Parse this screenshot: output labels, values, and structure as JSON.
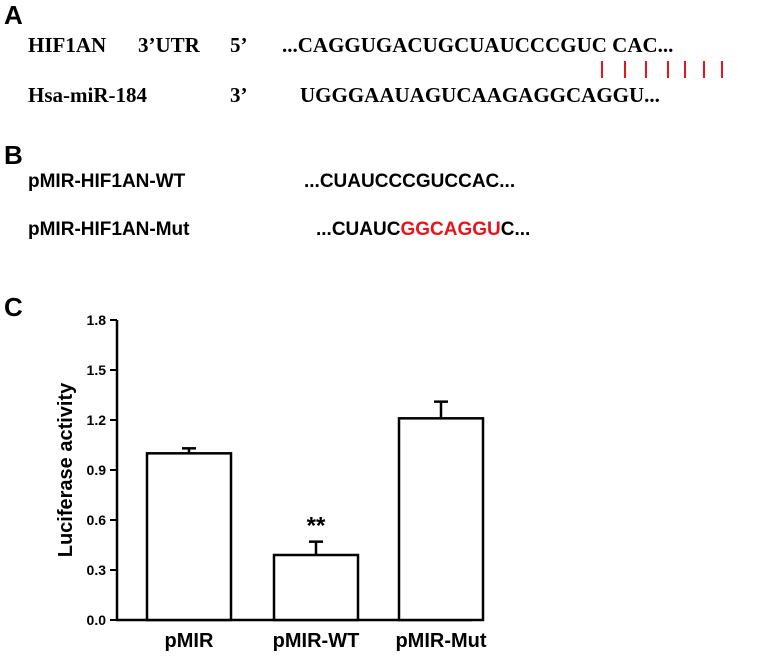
{
  "panel_a": {
    "label": "A",
    "row1": {
      "name": "HIF1AN",
      "region": "3’UTR",
      "end": "5’",
      "sequence": "...CAGGUGACUGCUAUCCCGUC CAC..."
    },
    "row2": {
      "name": "Hsa-miR-184",
      "end": "3’",
      "sequence": "UGGGAAUAGUCAAGAGGCAGGU..."
    },
    "pairing_count": 7,
    "pairing_color": "#e8141b"
  },
  "panel_b": {
    "label": "B",
    "wt": {
      "name_prefix": "pMIR",
      "name_suffix": "-HIF1AN-WT",
      "sequence": "...CUAUCCCGUCCAC..."
    },
    "mut": {
      "name_prefix": "pMIR",
      "name_suffix": "-HIF1AN-Mut",
      "seq_before": "...CUAUC",
      "seq_mutated": "GGCAGGU",
      "seq_after": "C..."
    },
    "mutation_color": "#e8141b"
  },
  "panel_c": {
    "label": "C"
  },
  "chart_data": {
    "type": "bar",
    "categories": [
      "pMIR",
      "pMIR-WT",
      "pMIR-Mut"
    ],
    "values": [
      1.0,
      0.39,
      1.21
    ],
    "errors": [
      0.03,
      0.08,
      0.1
    ],
    "annotations": [
      null,
      "**",
      null
    ],
    "ylabel": "Luciferase activity",
    "xlabel": "",
    "ylim": [
      0,
      1.8
    ],
    "yticks": [
      0.0,
      0.3,
      0.6,
      0.9,
      1.2,
      1.5,
      1.8
    ],
    "ytick_labels": [
      "0.0",
      "0.3",
      "0.6",
      "0.9",
      "1.2",
      "1.5",
      "1.8"
    ],
    "bar_fill": "#ffffff",
    "bar_stroke": "#000000",
    "grid": false
  }
}
